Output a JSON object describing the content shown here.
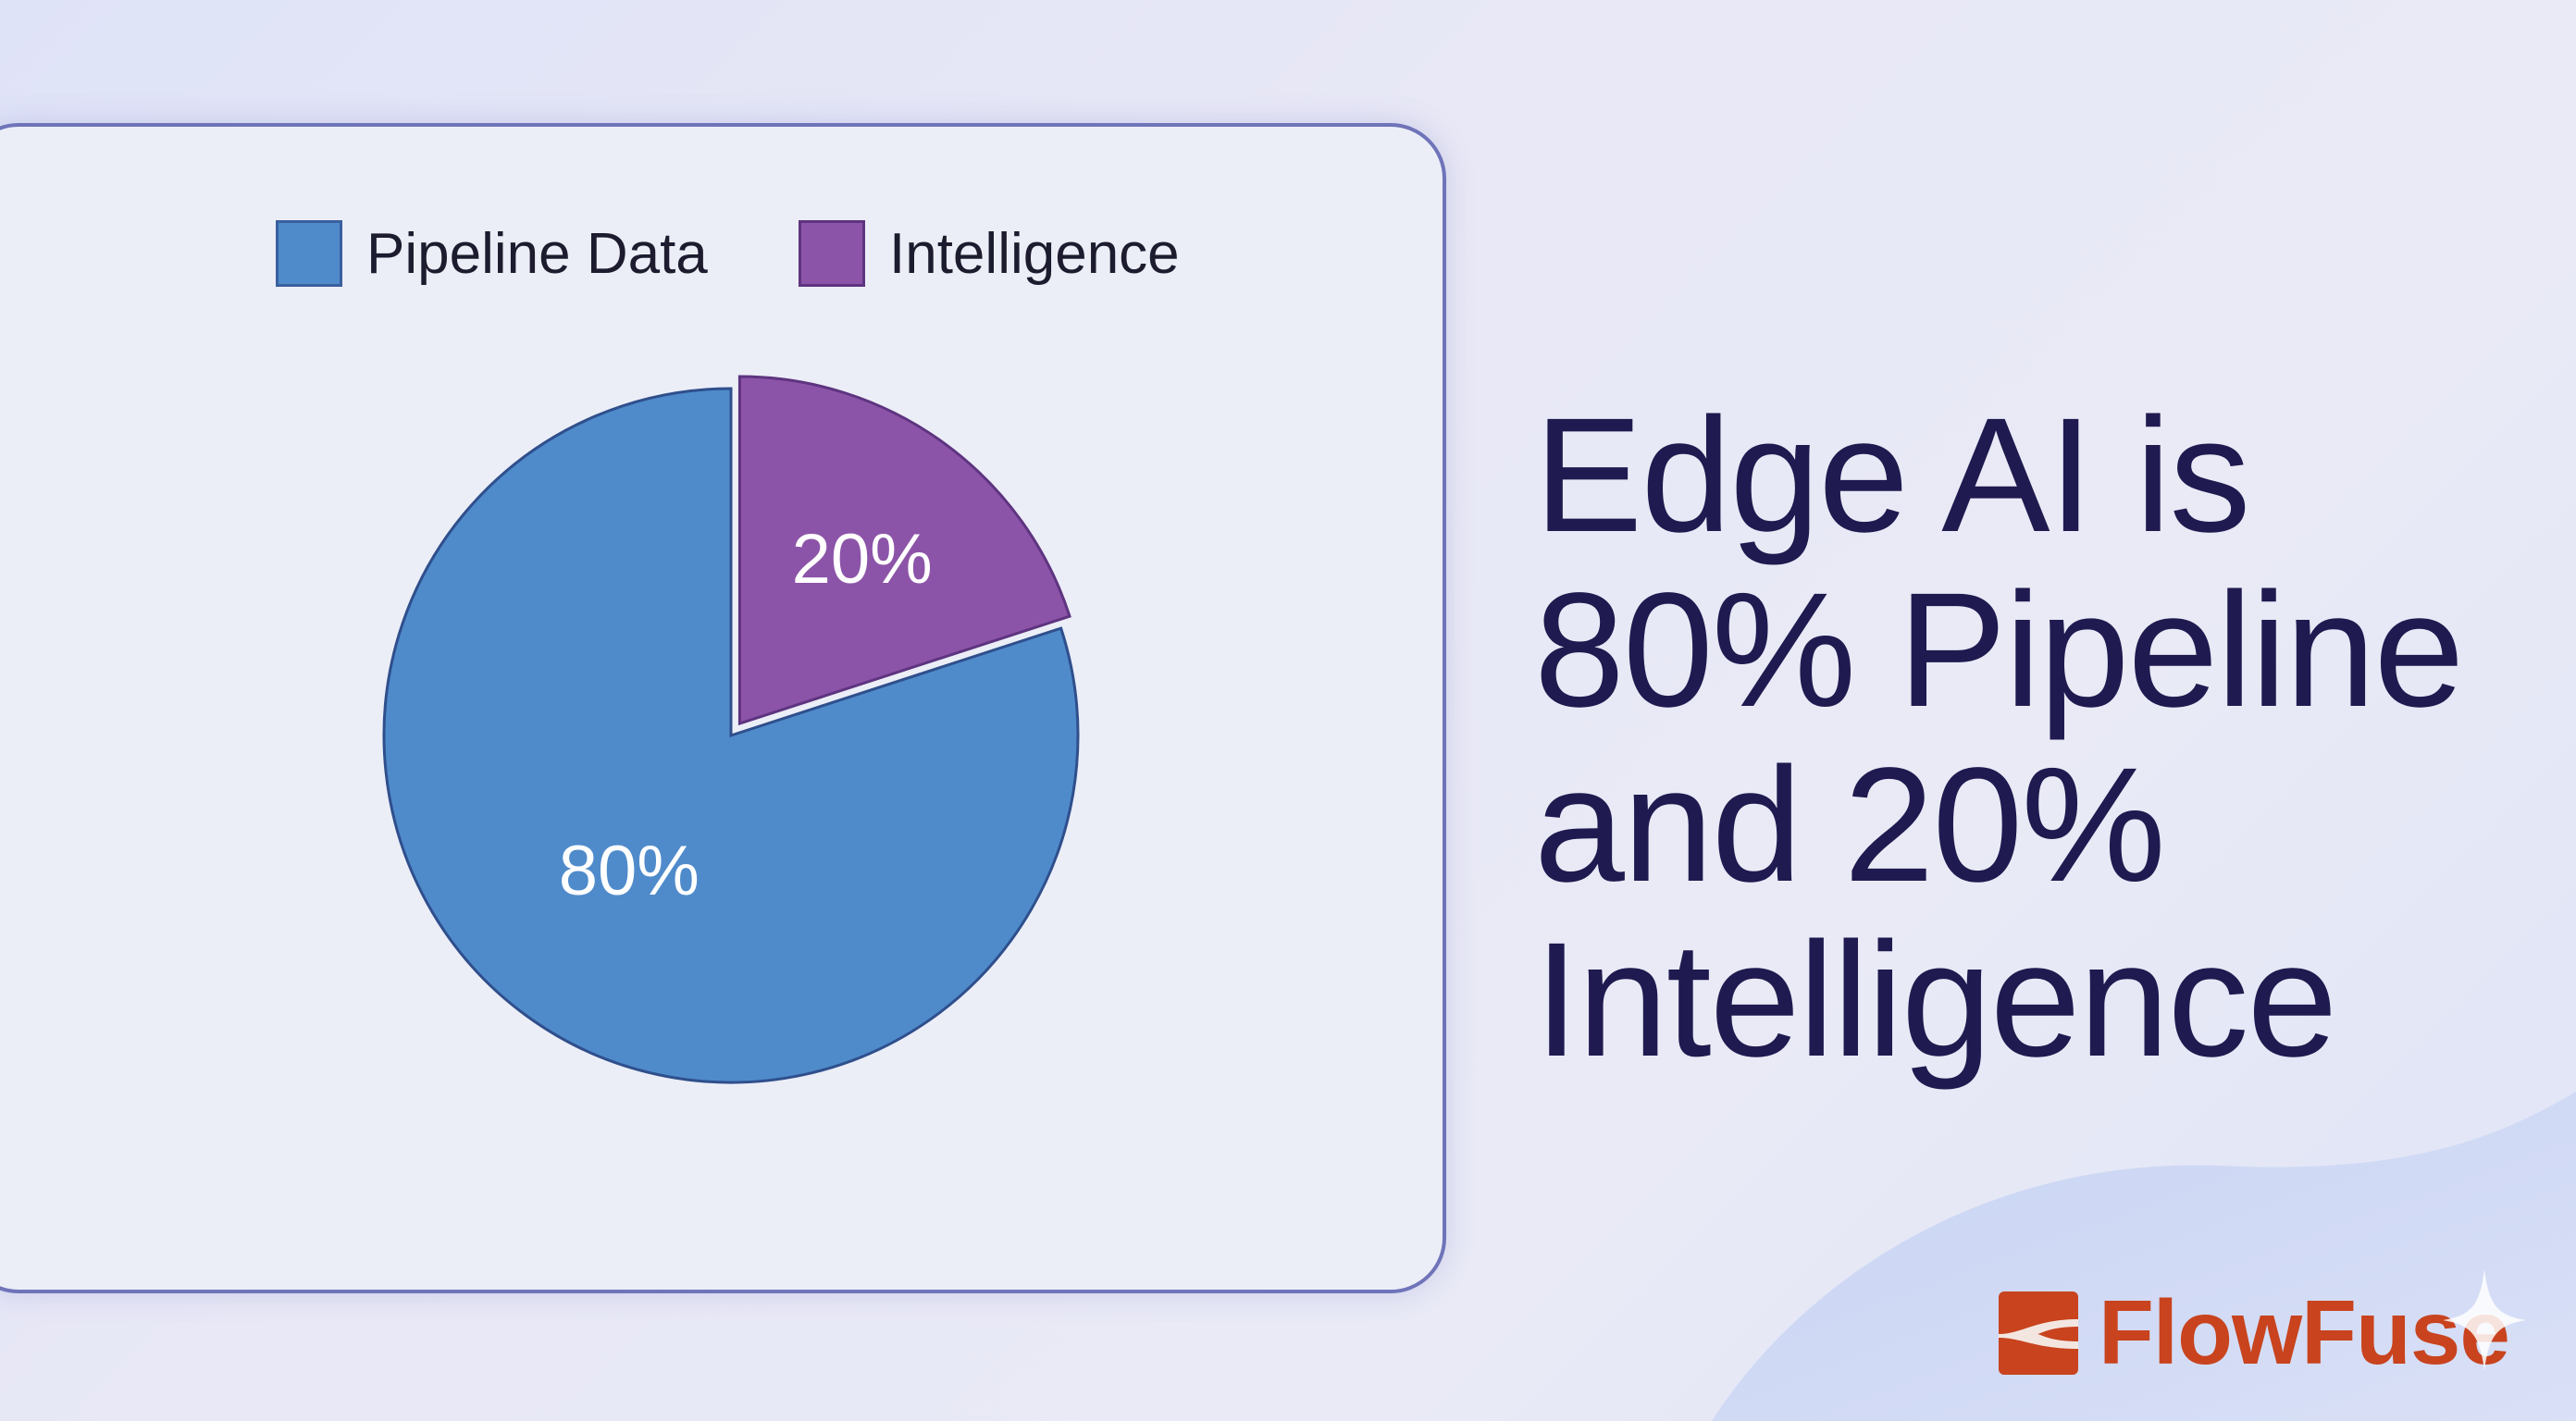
{
  "chart_data": {
    "type": "pie",
    "title": "",
    "legend_position": "top",
    "slices": [
      {
        "name": "Pipeline Data",
        "value": 80,
        "label": "80%",
        "color": "#4f8bcb"
      },
      {
        "name": "Intelligence",
        "value": 20,
        "label": "20%",
        "color": "#8c54a8",
        "exploded": true
      }
    ]
  },
  "headline": {
    "lines": [
      "Edge AI is",
      "80% Pipeline",
      "and 20%",
      "Intelligence"
    ]
  },
  "brand": {
    "name": "FlowFuse",
    "color": "#c8431e",
    "icon": "flowfuse-logo-icon"
  },
  "colors": {
    "text": "#1f1a4f",
    "card_border": "#6f74b9",
    "background": "#e4e6f6"
  }
}
